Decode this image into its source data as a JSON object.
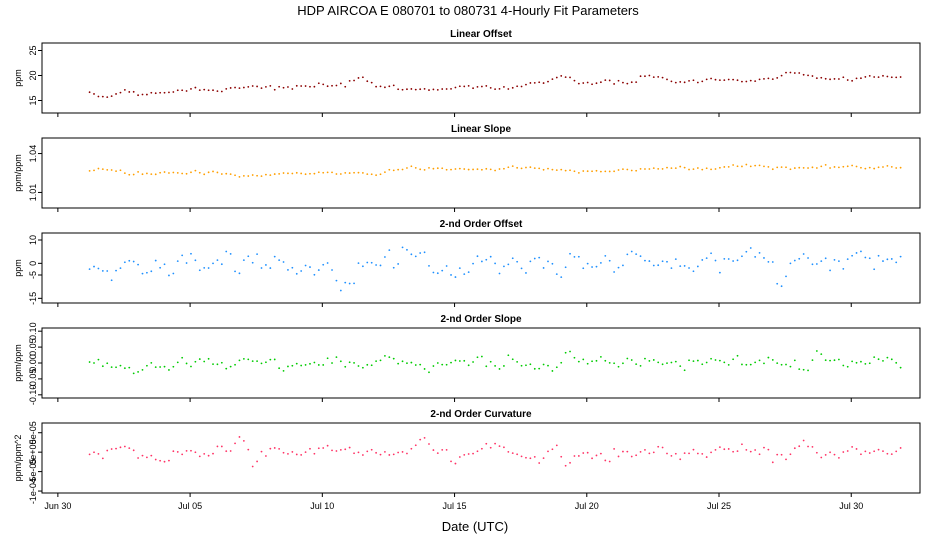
{
  "title": "HDP   AIRCOA E   080701 to 080731   4-Hourly Fit Parameters",
  "xlabel": "Date (UTC)",
  "x_ticks": [
    "Jun 30",
    "Jul 05",
    "Jul 10",
    "Jul 15",
    "Jul 20",
    "Jul 25",
    "Jul 30"
  ],
  "x_tick_days": [
    0,
    5,
    10,
    15,
    20,
    25,
    30
  ],
  "chart_data": [
    {
      "type": "scatter",
      "title": "Linear Offset",
      "ylabel": "ppm",
      "color": "#8b0000",
      "ylim": [
        12.5,
        26.5
      ],
      "y_ticks": [
        "15",
        "20",
        "25"
      ],
      "y_tick_values": [
        15,
        20,
        25
      ],
      "x_range_days": [
        1.2,
        32.0
      ],
      "anchors": [
        [
          1.2,
          15.5
        ],
        [
          1.8,
          15.7
        ],
        [
          2.5,
          17.0
        ],
        [
          3.2,
          16.6
        ],
        [
          4.5,
          17.0
        ],
        [
          5.2,
          17.5
        ],
        [
          5.7,
          16.8
        ],
        [
          6.5,
          17.8
        ],
        [
          7.5,
          18.1
        ],
        [
          8.5,
          17.4
        ],
        [
          9.5,
          17.6
        ],
        [
          10.6,
          18.0
        ],
        [
          11.5,
          18.6
        ],
        [
          12.5,
          17.6
        ],
        [
          13.0,
          16.9
        ],
        [
          14.0,
          17.6
        ],
        [
          15.0,
          17.8
        ],
        [
          16.0,
          17.6
        ],
        [
          17.0,
          17.7
        ],
        [
          18.0,
          18.5
        ],
        [
          19.0,
          18.8
        ],
        [
          20.0,
          18.7
        ],
        [
          21.0,
          18.4
        ],
        [
          22.0,
          19.0
        ],
        [
          23.0,
          19.3
        ],
        [
          24.0,
          18.9
        ],
        [
          25.0,
          18.9
        ],
        [
          26.0,
          19.1
        ],
        [
          27.0,
          19.4
        ],
        [
          28.0,
          19.8
        ],
        [
          28.5,
          19.3
        ],
        [
          29.5,
          19.3
        ],
        [
          30.5,
          19.9
        ],
        [
          31.5,
          19.9
        ],
        [
          32.0,
          19.4
        ]
      ],
      "noise": 0.35,
      "spikes": [
        [
          28.0,
          20.5
        ]
      ]
    },
    {
      "type": "scatter",
      "title": "Linear Slope",
      "ylabel": "ppm/ppm",
      "color": "#ff9f00",
      "ylim": [
        0.998,
        1.052
      ],
      "y_ticks": [
        "1.01",
        "1.04"
      ],
      "y_tick_values": [
        1.01,
        1.04
      ],
      "x_range_days": [
        1.2,
        32.0
      ],
      "anchors": [
        [
          1.2,
          1.0265
        ],
        [
          2.0,
          1.027
        ],
        [
          2.8,
          1.024
        ],
        [
          4.0,
          1.025
        ],
        [
          5.0,
          1.0255
        ],
        [
          6.0,
          1.024
        ],
        [
          7.0,
          1.022
        ],
        [
          8.0,
          1.023
        ],
        [
          9.0,
          1.025
        ],
        [
          10.0,
          1.024
        ],
        [
          11.0,
          1.026
        ],
        [
          12.0,
          1.0245
        ],
        [
          13.0,
          1.0285
        ],
        [
          14.0,
          1.029
        ],
        [
          15.0,
          1.0275
        ],
        [
          16.0,
          1.028
        ],
        [
          17.0,
          1.029
        ],
        [
          18.0,
          1.0285
        ],
        [
          19.0,
          1.027
        ],
        [
          20.0,
          1.0275
        ],
        [
          21.0,
          1.028
        ],
        [
          22.0,
          1.0275
        ],
        [
          23.0,
          1.028
        ],
        [
          24.0,
          1.0285
        ],
        [
          25.0,
          1.029
        ],
        [
          26.0,
          1.031
        ],
        [
          27.0,
          1.0295
        ],
        [
          28.0,
          1.0285
        ],
        [
          29.0,
          1.0295
        ],
        [
          30.0,
          1.0305
        ],
        [
          31.0,
          1.0285
        ],
        [
          32.0,
          1.029
        ]
      ],
      "noise": 0.0009,
      "spikes": []
    },
    {
      "type": "scatter",
      "title": "2-nd Order Offset",
      "ylabel": "ppm",
      "color": "#1e90ff",
      "ylim": [
        -17,
        13
      ],
      "y_ticks": [
        "10",
        "0",
        "-5",
        "-15"
      ],
      "y_tick_values": [
        10,
        0,
        -5,
        -15
      ],
      "x_range_days": [
        1.2,
        32.0
      ],
      "anchors": [
        [
          1.2,
          0
        ],
        [
          32.0,
          1
        ]
      ],
      "noise": 2.6,
      "spikes": [
        [
          7.0,
          4.5
        ],
        [
          13.8,
          5.5
        ],
        [
          28.2,
          4.0
        ],
        [
          19.0,
          -6.0
        ],
        [
          15.0,
          -6.0
        ],
        [
          6.8,
          -5.0
        ],
        [
          32.0,
          4.0
        ],
        [
          24.0,
          -3.5
        ]
      ]
    },
    {
      "type": "scatter",
      "title": "2-nd Order Slope",
      "ylabel": "ppm/ppm",
      "color": "#00cc00",
      "ylim": [
        -0.11,
        0.11
      ],
      "y_ticks": [
        "0.10",
        "0.05",
        "0.00",
        "-0.05",
        "-0.10"
      ],
      "y_tick_values": [
        0.1,
        0.05,
        0.0,
        -0.05,
        -0.1
      ],
      "x_range_days": [
        1.2,
        32.0
      ],
      "anchors": [
        [
          1.2,
          0
        ],
        [
          32.0,
          0
        ]
      ],
      "noise": 0.011,
      "spikes": [
        [
          19.3,
          0.04
        ],
        [
          28.7,
          0.04
        ],
        [
          14.0,
          -0.03
        ],
        [
          8.5,
          -0.025
        ],
        [
          28.3,
          -0.025
        ],
        [
          32.0,
          -0.02
        ]
      ]
    },
    {
      "type": "scatter",
      "title": "2-nd Order Curvature",
      "ylabel": "ppm/ppm^2",
      "color": "#ff3366",
      "ylim": [
        -0.000105,
        7.5e-05
      ],
      "y_ticks": [
        "5e-05",
        "0e+00",
        "-5e-05",
        "-1e-04"
      ],
      "y_tick_values": [
        5e-05,
        0.0,
        -5e-05,
        -0.0001
      ],
      "x_range_days": [
        1.2,
        32.0
      ],
      "anchors": [
        [
          1.2,
          0
        ],
        [
          32.0,
          0
        ]
      ],
      "noise": 1.1e-05,
      "spikes": [
        [
          13.8,
          4e-05
        ],
        [
          6.9,
          4e-05
        ],
        [
          28.2,
          3e-05
        ],
        [
          19.2,
          -3.5e-05
        ],
        [
          15.0,
          -3e-05
        ],
        [
          4.0,
          -2.5e-05
        ],
        [
          32.0,
          2e-05
        ]
      ]
    }
  ]
}
